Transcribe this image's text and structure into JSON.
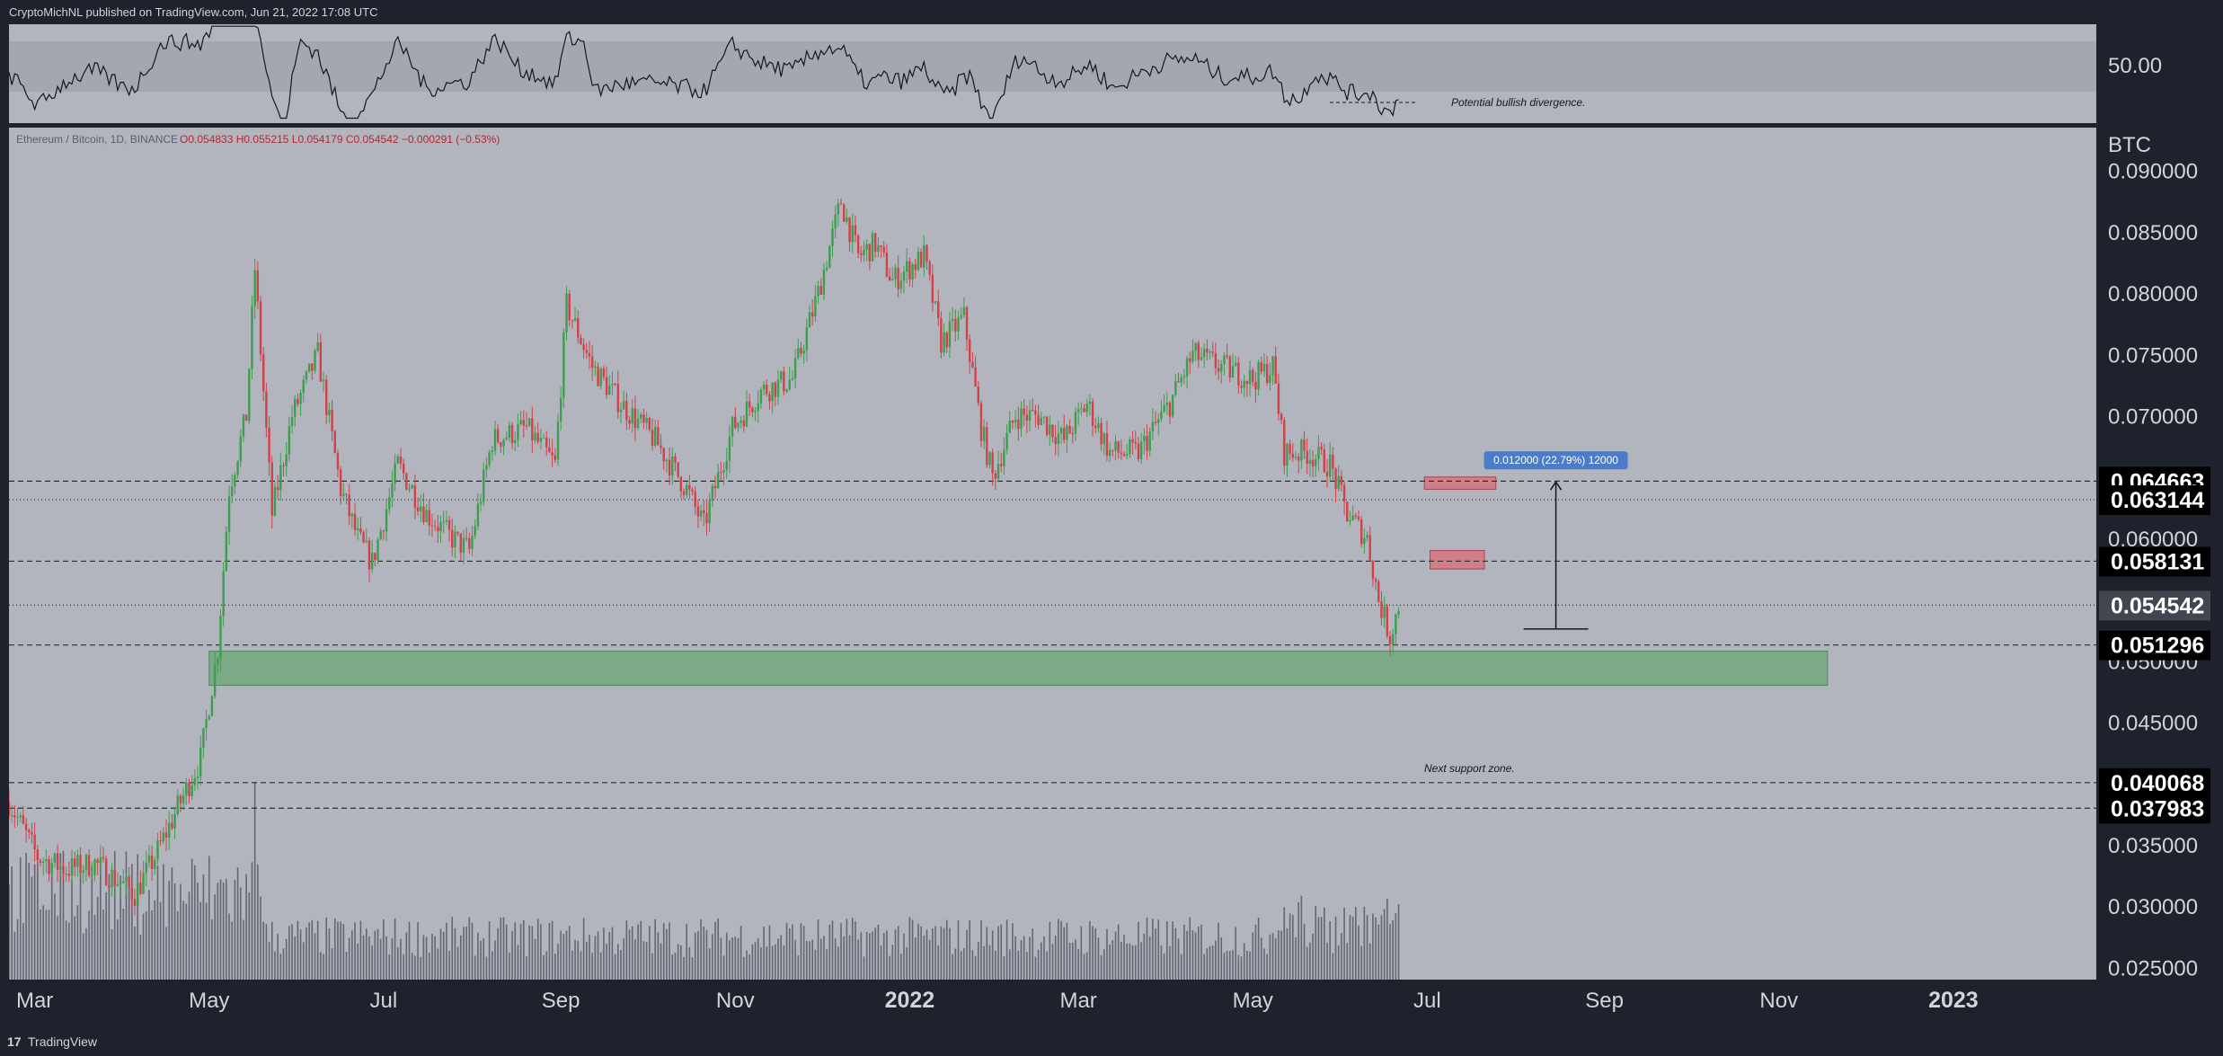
{
  "header": {
    "publisher": "CryptoMichNL published on TradingView.com, Jun 21, 2022 17:08 UTC"
  },
  "symbol_info": {
    "name": "Ethereum / Bitcoin, 1D, BINANCE",
    "ohlc": "O0.054833 H0.055215 L0.054179 C0.054542 −0.000291 (−0.53%)"
  },
  "rsi": {
    "level_label": "50.00",
    "note": "Potential bullish divergence."
  },
  "footer": {
    "brand": "TradingView",
    "logo_mark": "17"
  },
  "measure_label": "0.012000 (22.79%) 12000",
  "support_note": "Next support zone.",
  "colors": {
    "background": "#1e222d",
    "pane": "#b2b5be",
    "up_candle": "#3f9d4e",
    "down_candle": "#d0414a",
    "level_box": "#000000",
    "current_price_box": "#434651",
    "support_zone": "#6fa87a",
    "resistance_box": "#d07f89"
  },
  "chart_data": {
    "type": "candlestick",
    "title": "Ethereum / Bitcoin, 1D, BINANCE",
    "price_axis_unit": "BTC",
    "ylim": [
      0.024,
      0.0935
    ],
    "y_ticks": [
      "0.090000",
      "0.085000",
      "0.080000",
      "0.075000",
      "0.070000",
      "0.060000",
      "0.050000",
      "0.045000",
      "0.035000",
      "0.030000",
      "0.025000"
    ],
    "x_ticks": [
      {
        "label": "Mar",
        "date": "2021-03-01"
      },
      {
        "label": "May",
        "date": "2021-05-01"
      },
      {
        "label": "Jul",
        "date": "2021-07-01"
      },
      {
        "label": "Sep",
        "date": "2021-09-01"
      },
      {
        "label": "Nov",
        "date": "2021-11-01"
      },
      {
        "label": "2022",
        "date": "2022-01-01",
        "bold": true
      },
      {
        "label": "Mar",
        "date": "2022-03-01"
      },
      {
        "label": "May",
        "date": "2022-05-01"
      },
      {
        "label": "Jul",
        "date": "2022-07-01"
      },
      {
        "label": "Sep",
        "date": "2022-09-01"
      },
      {
        "label": "Nov",
        "date": "2022-11-01"
      },
      {
        "label": "2023",
        "date": "2023-01-01",
        "bold": true
      }
    ],
    "xlim": [
      "2021-02-20",
      "2023-02-20"
    ],
    "price_keypoints": [
      [
        "2021-02-20",
        0.0385
      ],
      [
        "2021-03-02",
        0.034
      ],
      [
        "2021-03-12",
        0.033
      ],
      [
        "2021-03-22",
        0.0335
      ],
      [
        "2021-04-05",
        0.031
      ],
      [
        "2021-04-12",
        0.034
      ],
      [
        "2021-04-20",
        0.038
      ],
      [
        "2021-04-28",
        0.042
      ],
      [
        "2021-05-04",
        0.051
      ],
      [
        "2021-05-08",
        0.064
      ],
      [
        "2021-05-14",
        0.07
      ],
      [
        "2021-05-17",
        0.082
      ],
      [
        "2021-05-23",
        0.062
      ],
      [
        "2021-05-30",
        0.07
      ],
      [
        "2021-06-08",
        0.075
      ],
      [
        "2021-06-16",
        0.064
      ],
      [
        "2021-06-22",
        0.06
      ],
      [
        "2021-06-27",
        0.058
      ],
      [
        "2021-07-06",
        0.066
      ],
      [
        "2021-07-16",
        0.062
      ],
      [
        "2021-07-25",
        0.06
      ],
      [
        "2021-07-31",
        0.059
      ],
      [
        "2021-08-08",
        0.068
      ],
      [
        "2021-08-20",
        0.069
      ],
      [
        "2021-08-30",
        0.066
      ],
      [
        "2021-09-03",
        0.079
      ],
      [
        "2021-09-12",
        0.074
      ],
      [
        "2021-09-22",
        0.071
      ],
      [
        "2021-10-04",
        0.068
      ],
      [
        "2021-10-15",
        0.064
      ],
      [
        "2021-10-21",
        0.061
      ],
      [
        "2021-10-31",
        0.069
      ],
      [
        "2021-11-10",
        0.072
      ],
      [
        "2021-11-21",
        0.073
      ],
      [
        "2021-11-30",
        0.08
      ],
      [
        "2021-12-08",
        0.0875
      ],
      [
        "2021-12-14",
        0.083
      ],
      [
        "2021-12-20",
        0.084
      ],
      [
        "2021-12-26",
        0.081
      ],
      [
        "2022-01-06",
        0.083
      ],
      [
        "2022-01-12",
        0.076
      ],
      [
        "2022-01-20",
        0.078
      ],
      [
        "2022-01-26",
        0.069
      ],
      [
        "2022-01-30",
        0.065
      ],
      [
        "2022-02-07",
        0.07
      ],
      [
        "2022-02-15",
        0.07
      ],
      [
        "2022-02-24",
        0.068
      ],
      [
        "2022-03-04",
        0.071
      ],
      [
        "2022-03-12",
        0.067
      ],
      [
        "2022-03-22",
        0.067
      ],
      [
        "2022-04-02",
        0.071
      ],
      [
        "2022-04-10",
        0.075
      ],
      [
        "2022-04-20",
        0.074
      ],
      [
        "2022-05-01",
        0.073
      ],
      [
        "2022-05-08",
        0.074
      ],
      [
        "2022-05-12",
        0.067
      ],
      [
        "2022-05-20",
        0.067
      ],
      [
        "2022-05-28",
        0.066
      ],
      [
        "2022-06-03",
        0.062
      ],
      [
        "2022-06-10",
        0.06
      ],
      [
        "2022-06-14",
        0.055
      ],
      [
        "2022-06-18",
        0.052
      ],
      [
        "2022-06-21",
        0.0545
      ]
    ],
    "levels": [
      {
        "value": "0.064663",
        "price": 0.064663,
        "style": "dashed",
        "label_style": "black"
      },
      {
        "value": "0.063144",
        "price": 0.063144,
        "style": "dotted",
        "label_style": "black"
      },
      {
        "value": "0.058131",
        "price": 0.058131,
        "style": "dashed",
        "label_style": "black"
      },
      {
        "value": "0.054542",
        "price": 0.054542,
        "style": "dotted",
        "label_style": "current"
      },
      {
        "value": "0.051296",
        "price": 0.051296,
        "style": "dashed",
        "label_style": "black"
      },
      {
        "value": "0.040068",
        "price": 0.040068,
        "style": "dashed",
        "label_style": "black"
      },
      {
        "value": "0.037983",
        "price": 0.037983,
        "style": "dashed",
        "label_style": "black"
      }
    ],
    "support_zone": {
      "from": "2021-05-01",
      "to": "2022-11-18",
      "top": 0.0508,
      "bottom": 0.048
    },
    "resistance_boxes": [
      {
        "from": "2022-06-30",
        "to": "2022-07-25",
        "top": 0.065,
        "bottom": 0.064
      },
      {
        "from": "2022-07-02",
        "to": "2022-07-21",
        "top": 0.059,
        "bottom": 0.0575
      }
    ],
    "measure": {
      "date": "2022-08-15",
      "from": 0.0526,
      "to": 0.0646
    },
    "rsi_series_note": "RSI oscillator with band around 50",
    "grid": false
  }
}
